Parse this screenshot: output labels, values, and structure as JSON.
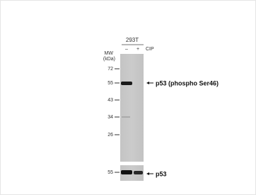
{
  "header": {
    "cell_line": "293T",
    "lanes": [
      "–",
      "+"
    ],
    "treatment": "CIP"
  },
  "markers": {
    "title": "MW",
    "unit": "(kDa)",
    "values": [
      "72",
      "55",
      "43",
      "34",
      "26"
    ]
  },
  "labels": {
    "upper": "p53 (phospho Ser46)",
    "lower": "p53"
  },
  "lower_marker": "55"
}
